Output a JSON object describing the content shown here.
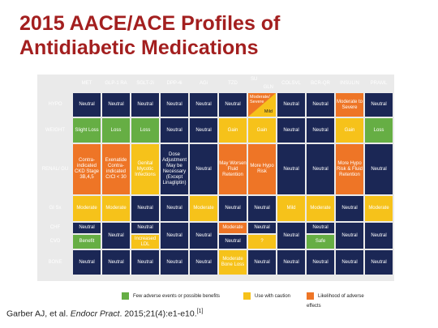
{
  "title": {
    "line1": "2015 AACE/ACE Profiles of",
    "line2": "Antidiabetic Medications"
  },
  "columns": [
    "MET",
    "GLP-1 RA",
    "SGLT-2i",
    "DPP-4i",
    "AGi",
    "TZD",
    "SU",
    "GLN",
    "COLSVL",
    "BCR-QR",
    "INSULIN",
    "PRAML"
  ],
  "rows": {
    "hypo": {
      "label": "HYPO",
      "cells": [
        "Neutral",
        "Neutral",
        "Neutral",
        "Neutral",
        "Neutral",
        "Neutral",
        "Moderate/ Severe",
        "Mild",
        "Neutral",
        "Neutral",
        "Moderate to Severe",
        "Neutral"
      ]
    },
    "weight": {
      "label": "WEIGHT",
      "cells": [
        "Slight Loss",
        "Loss",
        "Loss",
        "Neutral",
        "Neutral",
        "Gain",
        "Gain",
        "Neutral",
        "Neutral",
        "Gain",
        "Loss"
      ]
    },
    "renal": {
      "label": "RENAL/ GU",
      "cells": [
        "Contra-indicated CKD Stage 3B,4,5",
        "Exenatide Contra-indicated CrCl < 30",
        "Genital Mycotic Infections",
        "Dose Adjustment May be Necessary (Except Linagliptin)",
        "Neutral",
        "May Worsen Fluid Retention",
        "More Hypo Risk",
        "Neutral",
        "Neutral",
        "More Hypo Risk & Fluid Retention",
        "Neutral"
      ]
    },
    "gisx": {
      "label": "GI Sx",
      "cells": [
        "Moderate",
        "Moderate",
        "Neutral",
        "Neutral",
        "Moderate",
        "Neutral",
        "Neutral",
        "Mild",
        "Moderate",
        "Neutral",
        "Moderate"
      ]
    },
    "chf": {
      "label": "CHF",
      "cells": [
        "Neutral",
        "Neutral",
        "Moderate",
        "Neutral",
        "Neutral"
      ]
    },
    "cvd": {
      "label": "CVD",
      "cells": [
        "Benefit",
        "Increased LDL",
        "Neutral",
        "?",
        "Safe"
      ]
    },
    "bone": {
      "label": "BONE",
      "cells": [
        "Neutral",
        "Neutral",
        "Neutral",
        "Neutral",
        "Neutral",
        "Moderate Bone Loss",
        "Neutral",
        "Neutral",
        "Neutral",
        "Neutral",
        "Neutral"
      ]
    },
    "shared": {
      "neutral": "Neutral"
    }
  },
  "legend": {
    "green": "Few adverse events or possible benefits",
    "yellow": "Use with caution",
    "orange": "Likelihood of adverse effects"
  },
  "colors": {
    "navy": "#1b2755",
    "green": "#66ae44",
    "yellow": "#f6c21a",
    "orange": "#ee7526",
    "title": "#a31f1f"
  },
  "citation": {
    "authors": "Garber AJ, et al.",
    "journal": "Endocr Pract",
    "details": ". 2015;21(4):e1-e10.",
    "ref": "[1]"
  }
}
